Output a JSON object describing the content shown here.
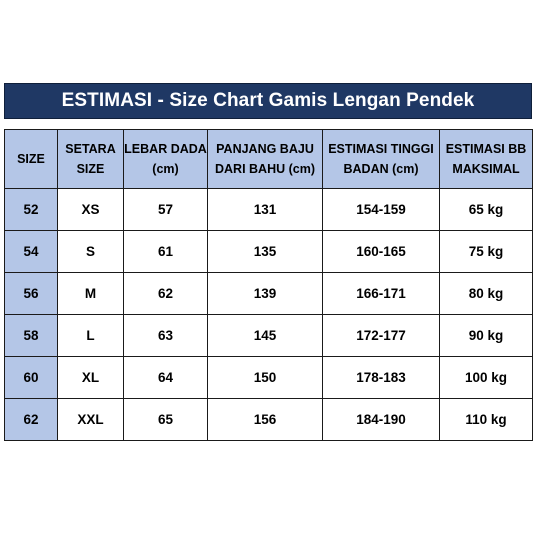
{
  "title": "ESTIMASI - Size Chart Gamis Lengan Pendek",
  "colors": {
    "title_bg": "#1f3864",
    "title_text": "#ffffff",
    "header_bg": "#b4c6e7",
    "size_col_bg": "#b4c6e7",
    "cell_bg": "#ffffff",
    "border": "#1a1a1a"
  },
  "headers": [
    [
      "SIZE"
    ],
    [
      "SETARA",
      "SIZE"
    ],
    [
      "LEBAR DADA",
      "(cm)"
    ],
    [
      "PANJANG BAJU",
      "DARI BAHU (cm)"
    ],
    [
      "ESTIMASI TINGGI",
      "BADAN (cm)"
    ],
    [
      "ESTIMASI BB",
      "MAKSIMAL"
    ]
  ],
  "rows": [
    [
      "52",
      "XS",
      "57",
      "131",
      "154-159",
      "65 kg"
    ],
    [
      "54",
      "S",
      "61",
      "135",
      "160-165",
      "75 kg"
    ],
    [
      "56",
      "M",
      "62",
      "139",
      "166-171",
      "80 kg"
    ],
    [
      "58",
      "L",
      "63",
      "145",
      "172-177",
      "90 kg"
    ],
    [
      "60",
      "XL",
      "64",
      "150",
      "178-183",
      "100 kg"
    ],
    [
      "62",
      "XXL",
      "65",
      "156",
      "184-190",
      "110 kg"
    ]
  ]
}
